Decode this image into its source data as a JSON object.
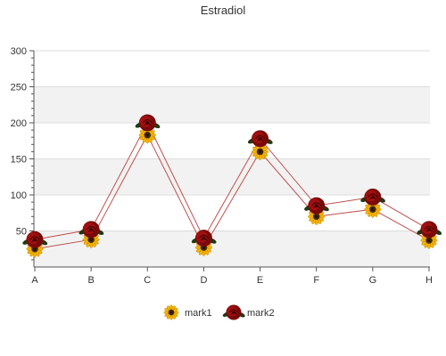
{
  "chart_data": {
    "type": "line",
    "title": "Estradiol",
    "xlabel": "",
    "ylabel": "",
    "categories": [
      "A",
      "B",
      "C",
      "D",
      "E",
      "F",
      "G",
      "H"
    ],
    "ylim": [
      0,
      300
    ],
    "yticks": [
      50,
      100,
      150,
      200,
      250,
      300
    ],
    "grid": true,
    "banded_background": true,
    "legend_position": "bottom-center",
    "line_color": "#c0504d",
    "series": [
      {
        "name": "mark1",
        "marker": "sunflower-icon",
        "color": "#f0a800",
        "values": [
          25,
          38,
          183,
          27,
          160,
          70,
          80,
          37
        ]
      },
      {
        "name": "mark2",
        "marker": "red-rose-icon",
        "color": "#8b0000",
        "values": [
          38,
          52,
          200,
          40,
          178,
          85,
          97,
          52
        ]
      }
    ]
  }
}
